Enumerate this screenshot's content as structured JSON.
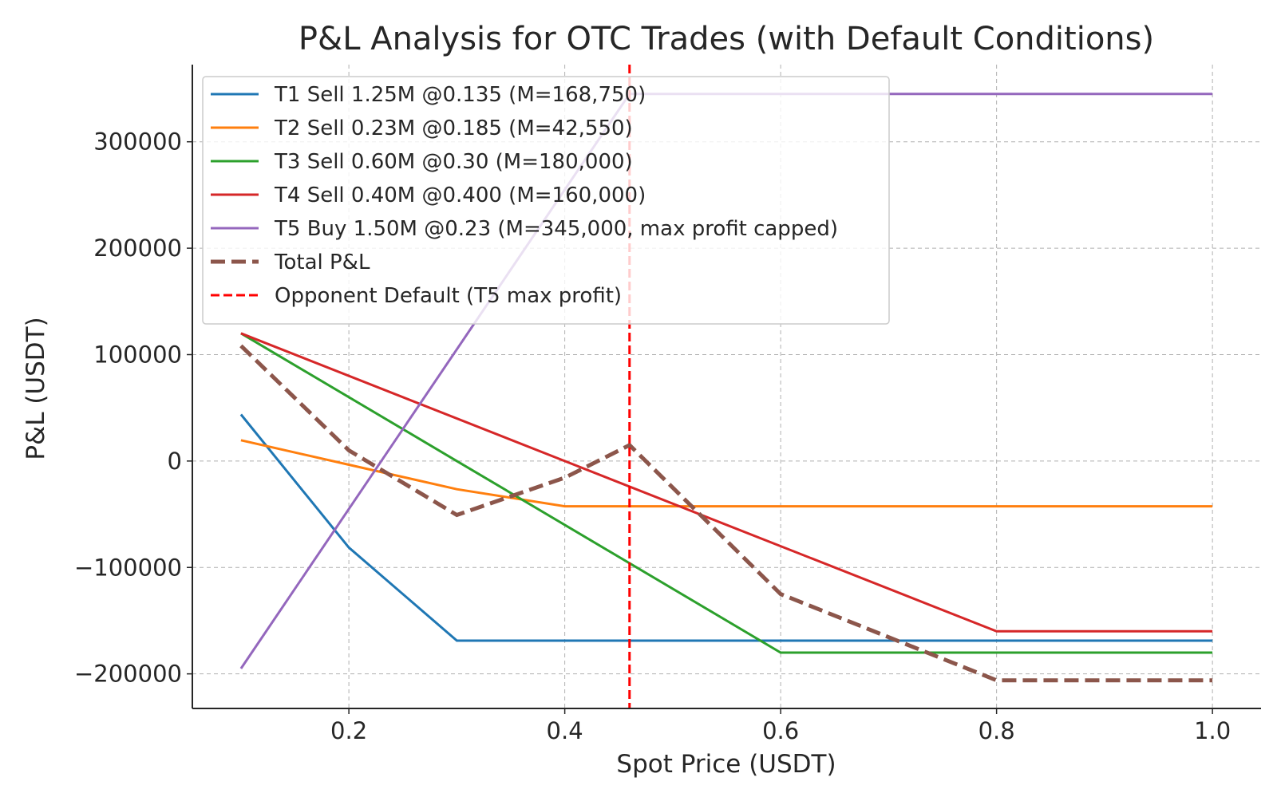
{
  "chart_data": {
    "type": "line",
    "title": "P&L Analysis for OTC Trades (with Default Conditions)",
    "xlabel": "Spot Price (USDT)",
    "ylabel": "P&L (USDT)",
    "xlim": [
      0.055,
      1.045
    ],
    "ylim": [
      -232500,
      372500
    ],
    "xticks": [
      0.2,
      0.4,
      0.6,
      0.8,
      1.0
    ],
    "xtick_labels": [
      "0.2",
      "0.4",
      "0.6",
      "0.8",
      "1.0"
    ],
    "yticks": [
      -200000,
      -100000,
      0,
      100000,
      200000,
      300000
    ],
    "ytick_labels": [
      "−200000",
      "−100000",
      "0",
      "100000",
      "200000",
      "300000"
    ],
    "grid": true,
    "legend_position": "top-left",
    "x": [
      0.1,
      0.2,
      0.3,
      0.4,
      0.5,
      0.6,
      0.7,
      0.8,
      0.9,
      1.0
    ],
    "series": [
      {
        "name": "T1 Sell 1.25M @0.135 (M=168,750)",
        "color": "#1f77b4",
        "style": "solid",
        "x": [
          0.1,
          0.2,
          0.3,
          1.0
        ],
        "values": [
          43750,
          -81250,
          -168750,
          -168750
        ]
      },
      {
        "name": "T2 Sell 0.23M @0.185 (M=42,550)",
        "color": "#ff7f0e",
        "style": "solid",
        "x": [
          0.1,
          0.2,
          0.3,
          0.4,
          1.0
        ],
        "values": [
          19550,
          -3450,
          -26450,
          -42550,
          -42550
        ]
      },
      {
        "name": "T3 Sell 0.60M @0.30 (M=180,000)",
        "color": "#2ca02c",
        "style": "solid",
        "x": [
          0.1,
          0.3,
          0.6,
          1.0
        ],
        "values": [
          120000,
          0,
          -180000,
          -180000
        ]
      },
      {
        "name": "T4 Sell 0.40M @0.400 (M=160,000)",
        "color": "#d62728",
        "style": "solid",
        "x": [
          0.1,
          0.4,
          0.8,
          1.0
        ],
        "values": [
          120000,
          0,
          -160000,
          -160000
        ]
      },
      {
        "name": "T5 Buy 1.50M @0.23 (M=345,000, max profit capped)",
        "color": "#9467bd",
        "style": "solid",
        "x": [
          0.1,
          0.46,
          1.0
        ],
        "values": [
          -195000,
          345000,
          345000
        ]
      },
      {
        "name": "Total P&L",
        "color": "#8c564b",
        "style": "dashed",
        "x": [
          0.1,
          0.2,
          0.3,
          0.4,
          0.46,
          0.6,
          0.8,
          1.0
        ],
        "values": [
          108300,
          10000,
          -50700,
          -15700,
          15000,
          -125000,
          -206000,
          -206000
        ]
      }
    ],
    "vline": {
      "name": "Opponent Default (T5 max profit)",
      "x": 0.46,
      "color": "#ff0000",
      "style": "dashed"
    }
  }
}
